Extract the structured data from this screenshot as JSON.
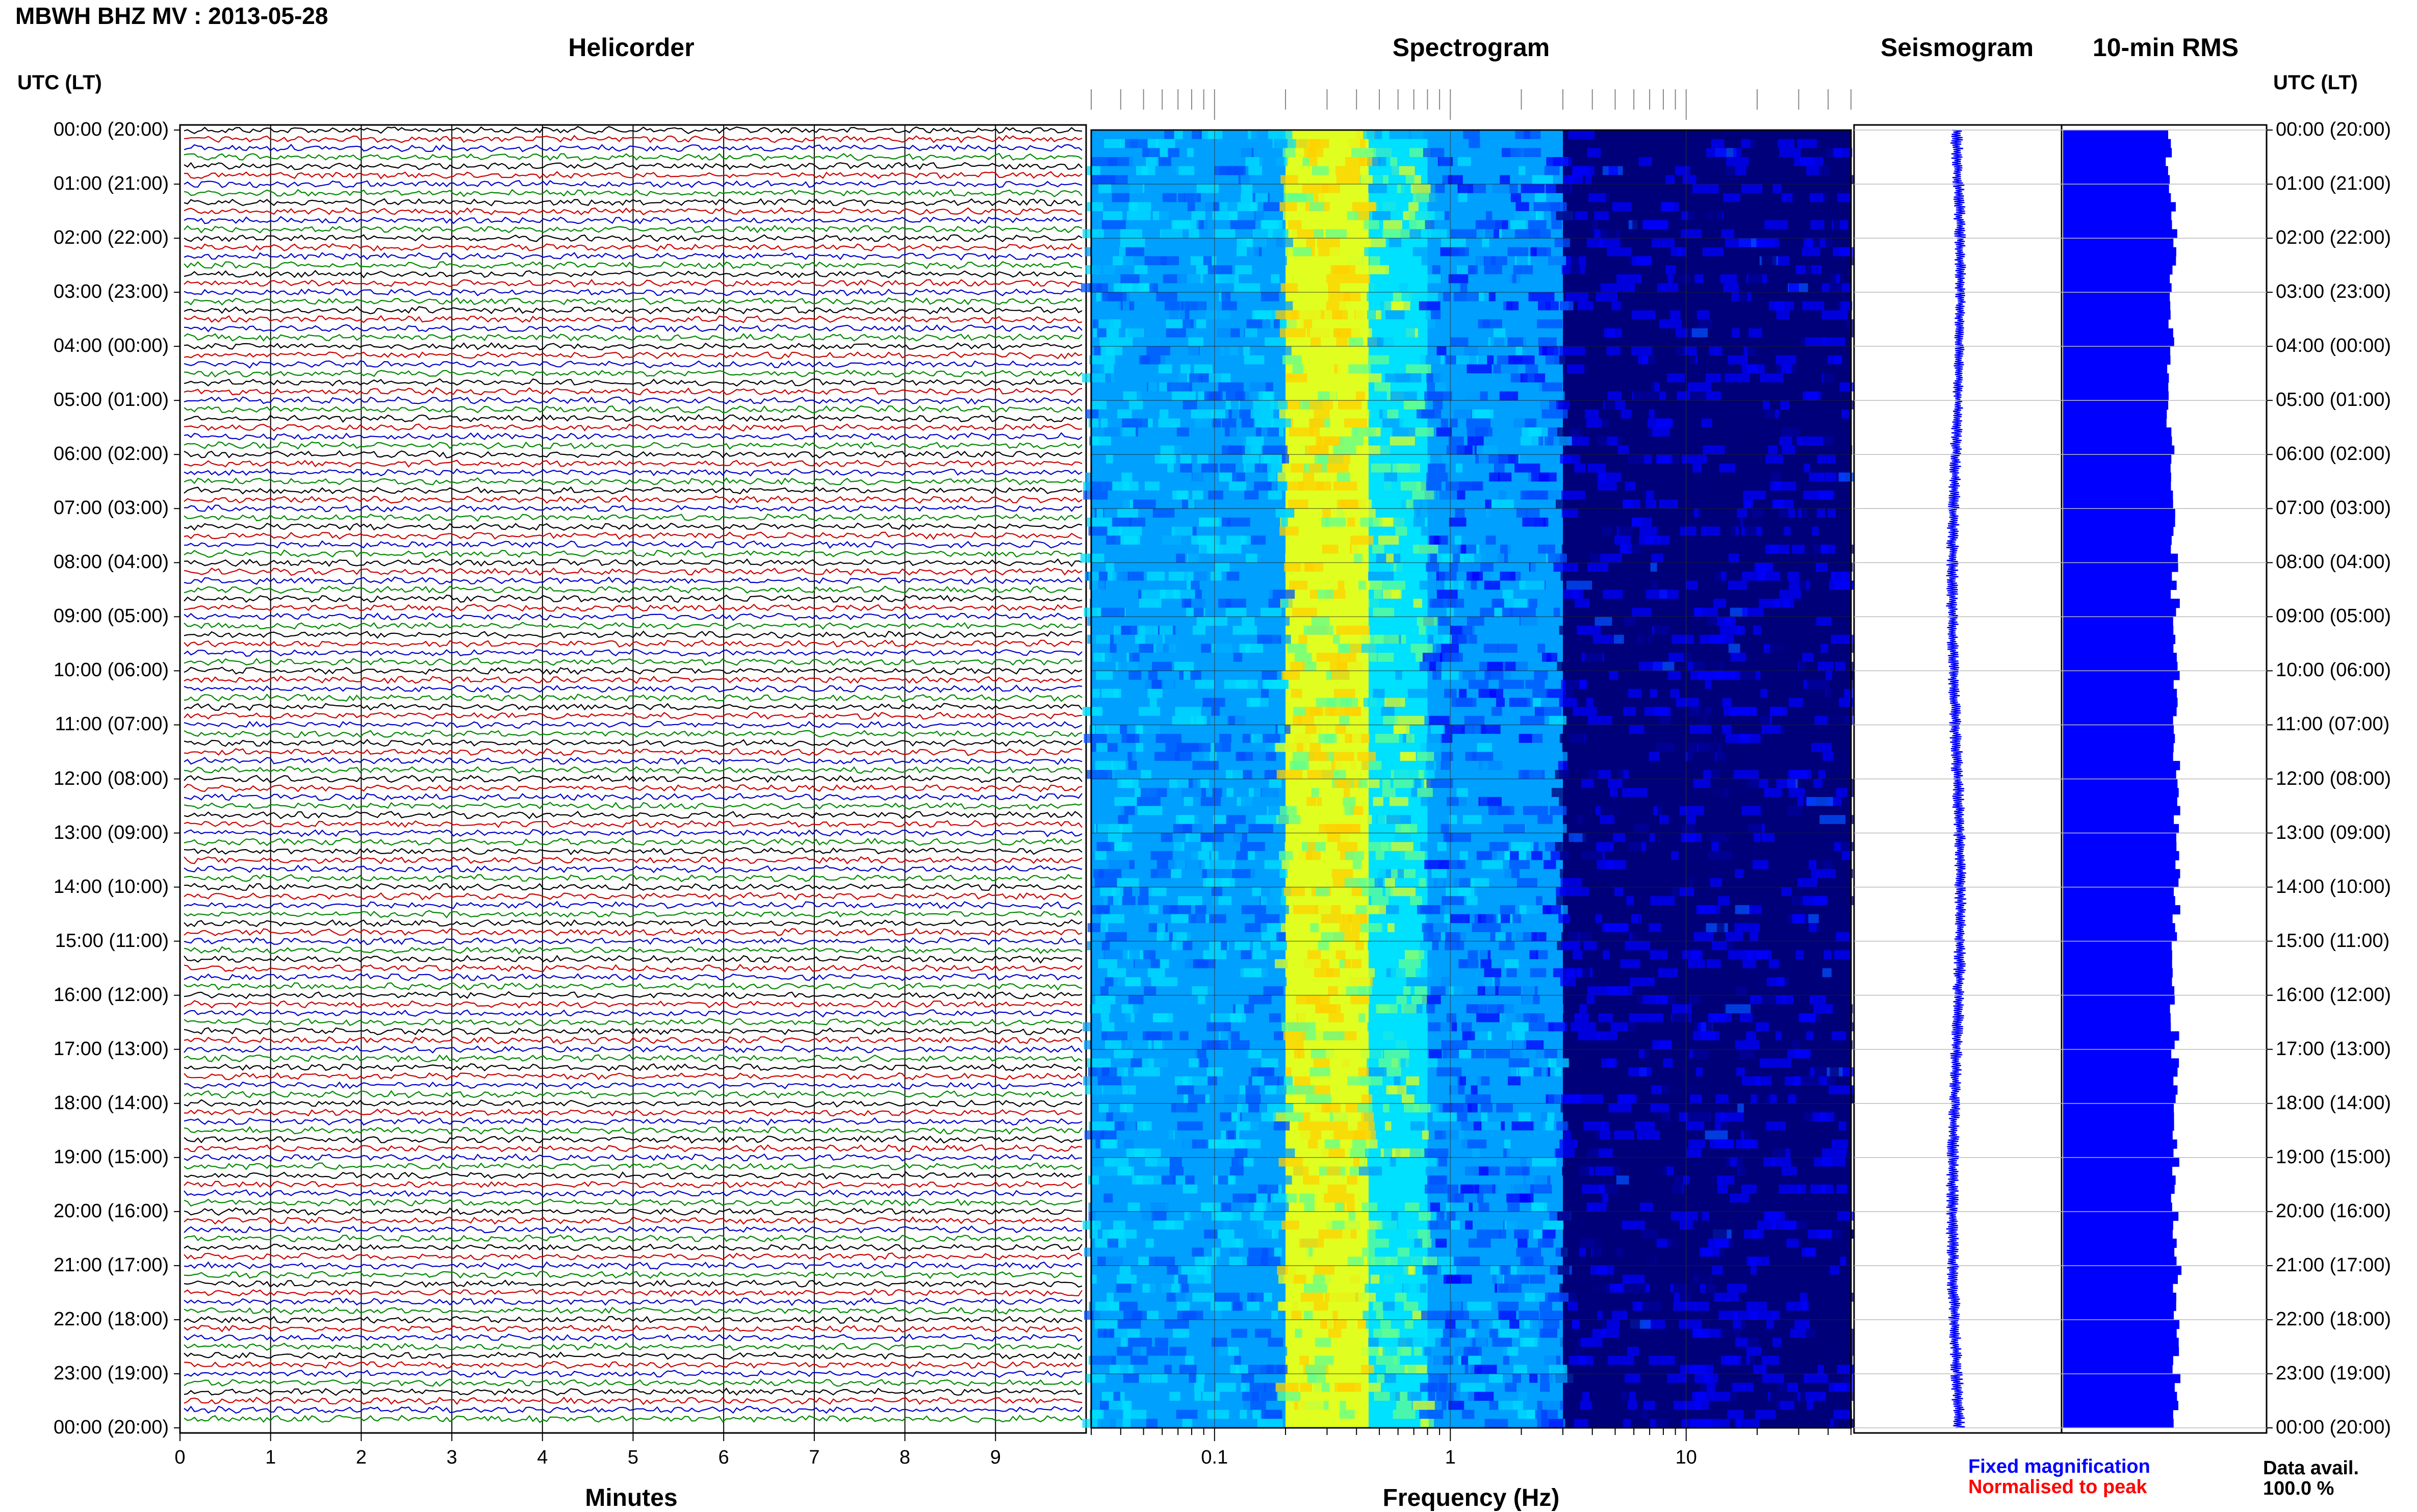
{
  "title": "MBWH BHZ MV : 2013-05-28",
  "panels": {
    "helicorder": "Helicorder",
    "spectrogram": "Spectrogram",
    "seismogram": "Seismogram",
    "rms": "10-min RMS"
  },
  "time_axis": {
    "header_left": "UTC (LT)",
    "header_right": "UTC (LT)",
    "labels": [
      "00:00 (20:00)",
      "01:00 (21:00)",
      "02:00 (22:00)",
      "03:00 (23:00)",
      "04:00 (00:00)",
      "05:00 (01:00)",
      "06:00 (02:00)",
      "07:00 (03:00)",
      "08:00 (04:00)",
      "09:00 (05:00)",
      "10:00 (06:00)",
      "11:00 (07:00)",
      "12:00 (08:00)",
      "13:00 (09:00)",
      "14:00 (10:00)",
      "15:00 (11:00)",
      "16:00 (12:00)",
      "17:00 (13:00)",
      "18:00 (14:00)",
      "19:00 (15:00)",
      "20:00 (16:00)",
      "21:00 (17:00)",
      "22:00 (18:00)",
      "23:00 (19:00)",
      "00:00 (20:00)"
    ]
  },
  "legend": {
    "fixed": "Fixed magnification",
    "normalised": "Normalised to peak",
    "fixed_color": "#0000ff",
    "normalised_color": "#ff0000"
  },
  "data_availability": {
    "label": "Data avail.",
    "value": "100.0 %"
  },
  "chart_data": [
    {
      "type": "line",
      "name": "helicorder",
      "xlabel": "Minutes",
      "x_ticks": [
        "0",
        "1",
        "2",
        "3",
        "4",
        "5",
        "6",
        "7",
        "8",
        "9"
      ],
      "xlim": [
        0,
        10
      ],
      "traces_per_hour": 6,
      "trace_minutes": 10,
      "trace_colors": [
        "#000000",
        "#cc0000",
        "#0000cc",
        "#008800"
      ]
    },
    {
      "type": "heatmap",
      "name": "spectrogram",
      "xlabel": "Frequency (Hz)",
      "x_scale": "log",
      "x_ticks": [
        "0.1",
        "1",
        "10"
      ],
      "xlim": [
        0.03,
        50
      ],
      "colormap": [
        "#00007a",
        "#0000ff",
        "#0050ff",
        "#00a0ff",
        "#00e0ff",
        "#60ff90",
        "#e0ff20",
        "#ffd000"
      ],
      "bands": [
        {
          "f_low": 0.03,
          "f_high": 0.2,
          "level": 0.45
        },
        {
          "f_low": 0.2,
          "f_high": 0.45,
          "level": 0.85
        },
        {
          "f_low": 0.45,
          "f_high": 0.8,
          "level": 0.62
        },
        {
          "f_low": 0.8,
          "f_high": 3,
          "level": 0.38
        },
        {
          "f_low": 3,
          "f_high": 50,
          "level": 0.08
        }
      ]
    },
    {
      "type": "line",
      "name": "seismogram",
      "color": "#0000ff",
      "hours": [
        0,
        2,
        4,
        6,
        8,
        10,
        12,
        14,
        16,
        18,
        20,
        22,
        24
      ],
      "relative_amplitude": [
        0.6,
        0.55,
        0.5,
        0.55,
        0.6,
        0.55,
        0.6,
        0.55,
        0.6,
        0.55,
        0.6,
        0.6,
        0.6
      ]
    },
    {
      "type": "bar",
      "name": "10-min RMS",
      "color": "#0000ff",
      "hours": [
        0,
        2,
        4,
        6,
        8,
        10,
        12,
        14,
        16,
        18,
        20,
        22,
        24
      ],
      "relative_rms": [
        0.68,
        0.72,
        0.7,
        0.7,
        0.72,
        0.75,
        0.73,
        0.74,
        0.72,
        0.74,
        0.73,
        0.75,
        0.72
      ]
    }
  ]
}
